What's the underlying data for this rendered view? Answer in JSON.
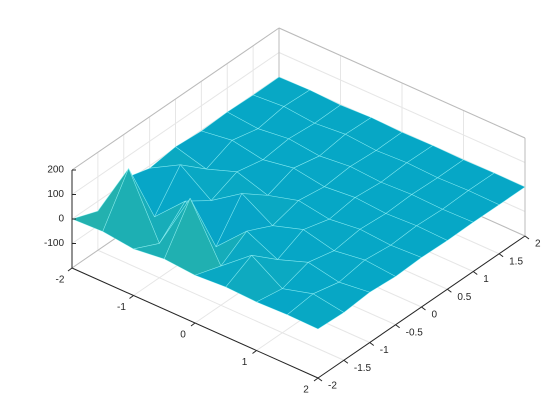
{
  "chart_data": {
    "type": "surface",
    "x": [
      -2,
      -1.5,
      -1,
      -0.5,
      0,
      0.5,
      1,
      1.5,
      2
    ],
    "y": [
      -2,
      -1.5,
      -1,
      -0.5,
      0,
      0.5,
      1,
      1.5,
      2
    ],
    "z": [
      [
        0,
        5,
        -10,
        5,
        -5,
        3,
        -2,
        2,
        0
      ],
      [
        -40,
        190,
        -60,
        180,
        -40,
        60,
        -20,
        15,
        -5
      ],
      [
        20,
        -80,
        40,
        -90,
        30,
        -30,
        15,
        -10,
        5
      ],
      [
        -10,
        60,
        -30,
        55,
        -20,
        20,
        -10,
        8,
        -3
      ],
      [
        5,
        -30,
        15,
        -25,
        10,
        -10,
        5,
        -4,
        2
      ],
      [
        -3,
        15,
        -8,
        14,
        -6,
        6,
        -3,
        3,
        -1
      ],
      [
        2,
        -10,
        5,
        -9,
        4,
        -4,
        2,
        -2,
        1
      ],
      [
        -1,
        8,
        -4,
        7,
        -3,
        3,
        -2,
        2,
        0
      ],
      [
        0,
        3,
        -2,
        3,
        -1,
        1,
        -1,
        1,
        0
      ]
    ],
    "xlim": [
      -2,
      2
    ],
    "ylim": [
      -2,
      2
    ],
    "zlim": [
      -200,
      200
    ],
    "xticks": [
      -2,
      -1,
      0,
      1,
      2
    ],
    "yticks": [
      -2,
      -1.5,
      -1,
      -0.5,
      0,
      0.5,
      1,
      1.5,
      2
    ],
    "zticks": [
      -100,
      0,
      100,
      200
    ],
    "grid": true,
    "colormap": [
      "#352a87",
      "#0363e1",
      "#1485d4",
      "#06a7c6",
      "#38b99e",
      "#d1bb59",
      "#f9fb0e"
    ]
  }
}
